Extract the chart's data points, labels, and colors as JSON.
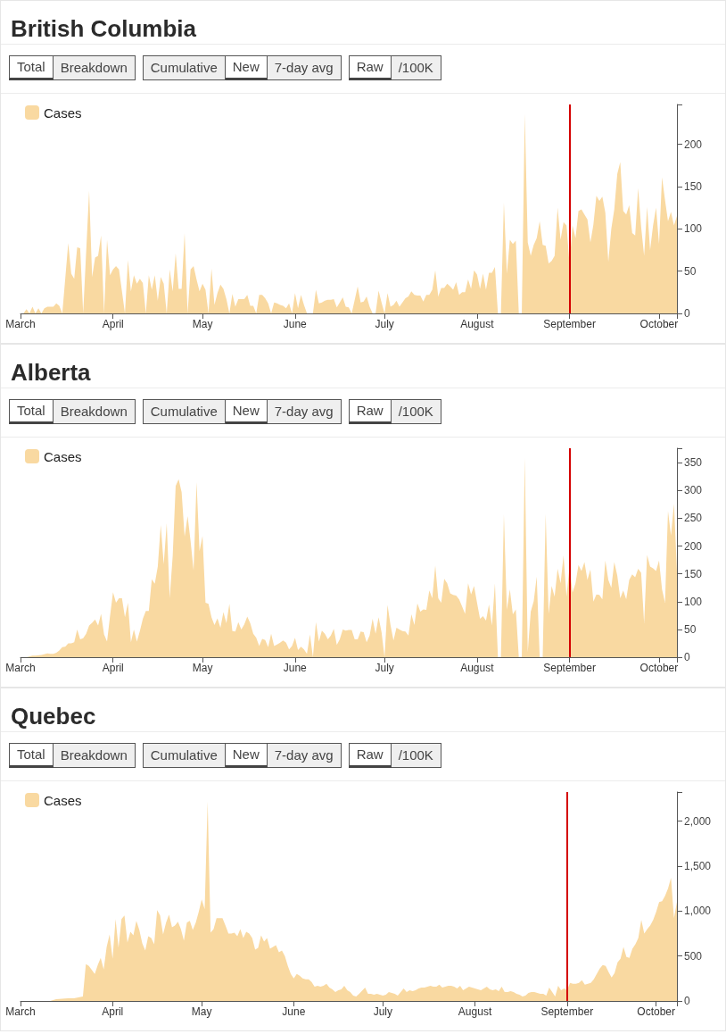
{
  "chart_data": [
    {
      "type": "area",
      "title": "British Columbia",
      "annotations": [
        "Total",
        "Breakdown",
        "Cumulative",
        "New",
        "7-day avg",
        "Raw",
        "/100K"
      ],
      "legend": "top left",
      "marker": "none",
      "x": [
        "--03-01",
        "--03-02",
        "--03-03",
        "--03-04",
        "--03-05",
        "--03-06",
        "--03-07",
        "--03-08",
        "--03-09",
        "--03-10",
        "--03-11",
        "--03-12",
        "--03-13",
        "--03-14",
        "--03-15",
        "--03-17",
        "--03-18",
        "--03-19",
        "--03-20",
        "--03-21",
        "--03-22",
        "--03-24",
        "--03-25",
        "--03-26",
        "--03-27",
        "--03-28",
        "--03-29",
        "--03-30",
        "--03-31",
        "--04-01",
        "--04-02",
        "--04-03",
        "--04-05",
        "--04-06",
        "--04-07",
        "--04-08",
        "--04-09",
        "--04-10",
        "--04-11",
        "--04-12",
        "--04-13",
        "--04-14",
        "--04-15",
        "--04-16",
        "--04-17",
        "--04-18",
        "--04-19",
        "--04-20",
        "--04-21",
        "--04-22",
        "--04-23",
        "--04-24",
        "--04-25",
        "--04-26",
        "--04-27",
        "--04-28",
        "--04-29",
        "--04-30",
        "--05-01",
        "--05-02",
        "--05-03",
        "--05-04",
        "--05-05",
        "--05-06",
        "--05-07",
        "--05-08",
        "--05-09",
        "--05-10",
        "--05-11",
        "--05-12",
        "--05-13",
        "--05-14",
        "--05-15",
        "--05-16",
        "--05-17",
        "--05-18",
        "--05-19",
        "--05-20",
        "--05-21",
        "--05-22",
        "--05-23",
        "--05-24",
        "--05-25",
        "--05-26",
        "--05-27",
        "--05-28",
        "--05-29",
        "--05-30",
        "--05-31",
        "--06-01",
        "--06-02",
        "--06-03",
        "--06-04",
        "--06-05",
        "--06-07",
        "--06-08",
        "--06-09",
        "--06-10",
        "--06-11",
        "--06-12",
        "--06-13",
        "--06-14",
        "--06-15",
        "--06-16",
        "--06-17",
        "--06-18",
        "--06-19",
        "--06-20",
        "--06-22",
        "--06-23",
        "--06-24",
        "--06-25",
        "--06-26",
        "--06-27",
        "--06-28",
        "--06-29",
        "--06-30",
        "--07-01",
        "--07-02",
        "--07-03",
        "--07-04",
        "--07-05",
        "--07-06",
        "--07-07",
        "--07-08",
        "--07-09",
        "--07-10",
        "--07-11",
        "--07-12",
        "--07-13",
        "--07-14",
        "--07-15",
        "--07-16",
        "--07-17",
        "--07-18",
        "--07-19",
        "--07-20",
        "--07-21",
        "--07-22",
        "--07-23",
        "--07-24",
        "--07-25",
        "--07-26",
        "--07-27",
        "--07-28",
        "--07-29",
        "--07-30",
        "--07-31",
        "--08-01",
        "--08-02",
        "--08-03",
        "--08-04",
        "--08-05",
        "--08-06",
        "--08-07",
        "--08-08",
        "--08-09",
        "--08-10",
        "--08-11",
        "--08-12",
        "--08-13",
        "--08-14",
        "--08-15",
        "--08-16",
        "--08-17",
        "--08-18",
        "--08-19",
        "--08-20",
        "--08-21",
        "--08-22",
        "--08-23",
        "--08-24",
        "--08-25",
        "--08-26",
        "--08-27",
        "--08-28",
        "--08-29",
        "--08-30",
        "--08-31",
        "--09-01",
        "--09-02",
        "--09-03",
        "--09-04",
        "--09-05",
        "--09-06",
        "--09-07",
        "--09-08",
        "--09-09",
        "--09-10",
        "--09-11",
        "--09-12",
        "--09-13",
        "--09-14",
        "--09-15",
        "--09-16",
        "--09-17",
        "--09-18",
        "--09-19",
        "--09-20",
        "--09-21",
        "--09-22",
        "--09-23",
        "--09-24",
        "--09-25",
        "--09-26",
        "--09-27",
        "--09-28",
        "--09-29",
        "--09-30",
        "--10-01",
        "--10-02",
        "--10-03",
        "--10-04",
        "--10-05",
        "--10-06",
        "--10-07"
      ],
      "series": [
        {
          "name": "Cases",
          "color": "#f9d9a1",
          "values": [
            0,
            0,
            5,
            0,
            8,
            0,
            6,
            0,
            6,
            8,
            8,
            8,
            12,
            9,
            0,
            83,
            47,
            41,
            78,
            77,
            0,
            145,
            43,
            66,
            68,
            92,
            0,
            87,
            45,
            52,
            56,
            52,
            0,
            63,
            26,
            45,
            35,
            41,
            36,
            0,
            45,
            28,
            45,
            15,
            43,
            35,
            0,
            52,
            26,
            71,
            29,
            29,
            95,
            0,
            52,
            56,
            40,
            26,
            35,
            28,
            0,
            53,
            10,
            24,
            34,
            29,
            17,
            0,
            23,
            8,
            17,
            17,
            17,
            22,
            9,
            9,
            0,
            22,
            22,
            18,
            12,
            0,
            13,
            12,
            10,
            9,
            6,
            12,
            0,
            24,
            6,
            22,
            10,
            0,
            0,
            28,
            12,
            13,
            15,
            16,
            16,
            17,
            7,
            13,
            19,
            8,
            7,
            0,
            32,
            13,
            14,
            20,
            8,
            0,
            0,
            27,
            13,
            0,
            24,
            8,
            10,
            15,
            8,
            13,
            18,
            20,
            26,
            22,
            21,
            21,
            14,
            22,
            22,
            28,
            51,
            20,
            30,
            30,
            35,
            32,
            28,
            37,
            22,
            25,
            25,
            40,
            29,
            51,
            46,
            29,
            47,
            28,
            48,
            48,
            55,
            0,
            0,
            131,
            47,
            87,
            82,
            86,
            0,
            0,
            236,
            84,
            68,
            81,
            89,
            109,
            81,
            80,
            59,
            62,
            68,
            125,
            87,
            108,
            104,
            58,
            104,
            89,
            121,
            123,
            117,
            111,
            84,
            105,
            139,
            133,
            138,
            119,
            61,
            100,
            123,
            165,
            179,
            121,
            117,
            128,
            95,
            92,
            148,
            102,
            68,
            126,
            75,
            104,
            125,
            82,
            161,
            134,
            109,
            120,
            104,
            115
          ]
        }
      ],
      "xlim": [
        "--03-01",
        "--10-07"
      ],
      "xticks": [
        {
          "value": "--03-01",
          "label": "March"
        },
        {
          "value": "--04-01",
          "label": "April"
        },
        {
          "value": "--05-01",
          "label": "May"
        },
        {
          "value": "--06-01",
          "label": "June"
        },
        {
          "value": "--07-01",
          "label": "July"
        },
        {
          "value": "--08-01",
          "label": "August"
        },
        {
          "value": "--09-01",
          "label": "September"
        },
        {
          "value": "--10-01",
          "label": "October"
        },
        {
          "value": "--10-07",
          "label": null
        }
      ],
      "ylim": [
        0,
        247
      ],
      "yticks": [
        0,
        50,
        100,
        150,
        200,
        {
          "value": 247,
          "label": null
        }
      ],
      "ref_lines": [
        {
          "axis": "x",
          "value": "--09-01",
          "color": "#d40000"
        }
      ]
    },
    {
      "type": "area",
      "title": "Alberta",
      "annotations": [
        "Total",
        "Breakdown",
        "Cumulative",
        "New",
        "7-day avg",
        "Raw",
        "/100K"
      ],
      "legend": "top left",
      "marker": "none",
      "x": [
        "--03-01",
        "--03-03",
        "--03-05",
        "--03-06",
        "--03-08",
        "--03-10",
        "--03-11",
        "--03-12",
        "--03-13",
        "--03-14",
        "--03-15",
        "--03-16",
        "--03-17",
        "--03-18",
        "--03-19",
        "--03-20",
        "--03-21",
        "--03-22",
        "--03-23",
        "--03-24",
        "--03-25",
        "--03-26",
        "--03-27",
        "--03-28",
        "--03-29",
        "--03-30",
        "--03-31",
        "--04-01",
        "--04-02",
        "--04-03",
        "--04-04",
        "--04-05",
        "--04-06",
        "--04-07",
        "--04-08",
        "--04-09",
        "--04-10",
        "--04-11",
        "--04-12",
        "--04-13",
        "--04-14",
        "--04-15",
        "--04-16",
        "--04-17",
        "--04-18",
        "--04-19",
        "--04-20",
        "--04-21",
        "--04-22",
        "--04-23",
        "--04-24",
        "--04-25",
        "--04-26",
        "--04-27",
        "--04-28",
        "--04-29",
        "--04-30",
        "--05-01",
        "--05-02",
        "--05-03",
        "--05-04",
        "--05-05",
        "--05-06",
        "--05-07",
        "--05-08",
        "--05-09",
        "--05-10",
        "--05-11",
        "--05-12",
        "--05-13",
        "--05-14",
        "--05-15",
        "--05-16",
        "--05-17",
        "--05-18",
        "--05-19",
        "--05-20",
        "--05-21",
        "--05-22",
        "--05-23",
        "--05-24",
        "--05-25",
        "--05-26",
        "--05-27",
        "--05-28",
        "--05-29",
        "--05-30",
        "--05-31",
        "--06-01",
        "--06-02",
        "--06-03",
        "--06-04",
        "--06-05",
        "--06-06",
        "--06-07",
        "--06-08",
        "--06-09",
        "--06-10",
        "--06-11",
        "--06-12",
        "--06-13",
        "--06-14",
        "--06-15",
        "--06-16",
        "--06-17",
        "--06-18",
        "--06-19",
        "--06-20",
        "--06-21",
        "--06-22",
        "--06-23",
        "--06-24",
        "--06-25",
        "--06-26",
        "--06-27",
        "--06-28",
        "--06-29",
        "--06-30",
        "--07-01",
        "--07-02",
        "--07-03",
        "--07-04",
        "--07-05",
        "--07-06",
        "--07-07",
        "--07-08",
        "--07-09",
        "--07-10",
        "--07-11",
        "--07-12",
        "--07-13",
        "--07-14",
        "--07-15",
        "--07-16",
        "--07-17",
        "--07-18",
        "--07-19",
        "--07-20",
        "--07-21",
        "--07-22",
        "--07-23",
        "--07-24",
        "--07-25",
        "--07-26",
        "--07-27",
        "--07-28",
        "--07-29",
        "--07-30",
        "--07-31",
        "--08-01",
        "--08-02",
        "--08-03",
        "--08-04",
        "--08-05",
        "--08-06",
        "--08-07",
        "--08-08",
        "--08-09",
        "--08-10",
        "--08-11",
        "--08-12",
        "--08-13",
        "--08-14",
        "--08-15",
        "--08-16",
        "--08-17",
        "--08-18",
        "--08-19",
        "--08-20",
        "--08-21",
        "--08-22",
        "--08-23",
        "--08-24",
        "--08-25",
        "--08-26",
        "--08-27",
        "--08-28",
        "--08-29",
        "--08-30",
        "--08-31",
        "--09-01",
        "--09-02",
        "--09-03",
        "--09-04",
        "--09-05",
        "--09-06",
        "--09-07",
        "--09-08",
        "--09-09",
        "--09-10",
        "--09-11",
        "--09-12",
        "--09-13",
        "--09-14",
        "--09-15",
        "--09-16",
        "--09-17",
        "--09-18",
        "--09-19",
        "--09-20",
        "--09-21",
        "--09-22",
        "--09-23",
        "--09-24",
        "--09-25",
        "--09-26",
        "--09-27",
        "--09-28",
        "--09-29",
        "--09-30",
        "--10-01",
        "--10-02",
        "--10-03",
        "--10-04",
        "--10-05",
        "--10-06",
        "--10-07"
      ],
      "series": [
        {
          "name": "Cases",
          "color": "#f9d9a1",
          "values": [
            0,
            0,
            3,
            3,
            4,
            7,
            6,
            6,
            8,
            12,
            18,
            19,
            25,
            25,
            27,
            50,
            32,
            34,
            42,
            57,
            62,
            68,
            57,
            78,
            41,
            28,
            74,
            117,
            98,
            106,
            106,
            72,
            98,
            27,
            50,
            28,
            47,
            69,
            83,
            83,
            140,
            132,
            163,
            238,
            167,
            241,
            106,
            182,
            308,
            320,
            297,
            217,
            254,
            209,
            156,
            315,
            191,
            218,
            98,
            96,
            72,
            58,
            70,
            53,
            81,
            61,
            96,
            47,
            46,
            63,
            50,
            59,
            73,
            61,
            42,
            35,
            20,
            33,
            31,
            18,
            42,
            20,
            23,
            26,
            30,
            26,
            14,
            20,
            35,
            13,
            19,
            14,
            6,
            41,
            0,
            63,
            28,
            48,
            42,
            32,
            39,
            51,
            22,
            32,
            50,
            48,
            49,
            49,
            32,
            32,
            46,
            45,
            27,
            39,
            69,
            42,
            72,
            45,
            0,
            94,
            58,
            30,
            53,
            50,
            47,
            46,
            39,
            77,
            58,
            97,
            82,
            86,
            85,
            120,
            106,
            165,
            106,
            98,
            141,
            133,
            115,
            112,
            111,
            104,
            91,
            78,
            133,
            113,
            128,
            98,
            69,
            74,
            66,
            95,
            57,
            133,
            0,
            0,
            257,
            85,
            122,
            77,
            86,
            0,
            0,
            359,
            9,
            82,
            101,
            145,
            0,
            0,
            258,
            78,
            128,
            109,
            159,
            133,
            183,
            109,
            165,
            116,
            133,
            166,
            155,
            171,
            139,
            158,
            100,
            113,
            112,
            104,
            174,
            139,
            125,
            171,
            147,
            106,
            120,
            104,
            139,
            149,
            144,
            159,
            152,
            61,
            184,
            163,
            160,
            155,
            174,
            122,
            98,
            263,
            219,
            276,
            155
          ]
        }
      ],
      "xlim": [
        "--03-01",
        "--10-07"
      ],
      "xticks": [
        {
          "value": "--03-01",
          "label": "March"
        },
        {
          "value": "--04-01",
          "label": "April"
        },
        {
          "value": "--05-01",
          "label": "May"
        },
        {
          "value": "--06-01",
          "label": "June"
        },
        {
          "value": "--07-01",
          "label": "July"
        },
        {
          "value": "--08-01",
          "label": "August"
        },
        {
          "value": "--09-01",
          "label": "September"
        },
        {
          "value": "--10-01",
          "label": "October"
        },
        {
          "value": "--10-07",
          "label": null
        }
      ],
      "ylim": [
        0,
        376
      ],
      "yticks": [
        0,
        50,
        100,
        150,
        200,
        250,
        300,
        350,
        {
          "value": 376,
          "label": null
        }
      ],
      "ref_lines": [
        {
          "axis": "x",
          "value": "--09-01",
          "color": "#d40000"
        }
      ]
    },
    {
      "type": "area",
      "title": "Quebec",
      "annotations": [
        "Total",
        "Breakdown",
        "Cumulative",
        "New",
        "7-day avg",
        "Raw",
        "/100K"
      ],
      "legend": "top left",
      "marker": "none",
      "x": [
        "--03-01",
        "--03-11",
        "--03-13",
        "--03-17",
        "--03-19",
        "--03-22",
        "--03-23",
        "--03-24",
        "--03-26",
        "--03-27",
        "--03-28",
        "--03-29",
        "--03-30",
        "--03-31",
        "--04-01",
        "--04-02",
        "--04-03",
        "--04-04",
        "--04-05",
        "--04-06",
        "--04-07",
        "--04-08",
        "--04-09",
        "--04-10",
        "--04-11",
        "--04-12",
        "--04-13",
        "--04-14",
        "--04-15",
        "--04-16",
        "--04-17",
        "--04-18",
        "--04-19",
        "--04-20",
        "--04-21",
        "--04-22",
        "--04-23",
        "--04-24",
        "--04-25",
        "--04-26",
        "--04-27",
        "--04-28",
        "--04-29",
        "--04-30",
        "--05-01",
        "--05-02",
        "--05-03",
        "--05-04",
        "--05-05",
        "--05-06",
        "--05-07",
        "--05-08",
        "--05-09",
        "--05-10",
        "--05-11",
        "--05-12",
        "--05-13",
        "--05-14",
        "--05-15",
        "--05-16",
        "--05-17",
        "--05-18",
        "--05-19",
        "--05-20",
        "--05-21",
        "--05-22",
        "--05-23",
        "--05-24",
        "--05-25",
        "--05-26",
        "--05-27",
        "--05-28",
        "--05-29",
        "--05-30",
        "--05-31",
        "--06-01",
        "--06-02",
        "--06-03",
        "--06-04",
        "--06-05",
        "--06-06",
        "--06-07",
        "--06-08",
        "--06-09",
        "--06-10",
        "--06-11",
        "--06-12",
        "--06-13",
        "--06-14",
        "--06-15",
        "--06-16",
        "--06-17",
        "--06-18",
        "--06-19",
        "--06-20",
        "--06-21",
        "--06-22",
        "--06-23",
        "--06-25",
        "--06-26",
        "--06-27",
        "--06-28",
        "--06-29",
        "--06-30",
        "--07-01",
        "--07-02",
        "--07-03",
        "--07-05",
        "--07-06",
        "--07-07",
        "--07-08",
        "--07-09",
        "--07-10",
        "--07-11",
        "--07-12",
        "--07-13",
        "--07-14",
        "--07-15",
        "--07-16",
        "--07-17",
        "--07-18",
        "--07-19",
        "--07-20",
        "--07-21",
        "--07-22",
        "--07-23",
        "--07-24",
        "--07-25",
        "--07-26",
        "--07-27",
        "--07-28",
        "--07-29",
        "--07-30",
        "--07-31",
        "--08-01",
        "--08-02",
        "--08-03",
        "--08-04",
        "--08-05",
        "--08-06",
        "--08-07",
        "--08-08",
        "--08-09",
        "--08-10",
        "--08-11",
        "--08-12",
        "--08-13",
        "--08-14",
        "--08-15",
        "--08-16",
        "--08-17",
        "--08-18",
        "--08-19",
        "--08-20",
        "--08-21",
        "--08-22",
        "--08-23",
        "--08-24",
        "--08-25",
        "--08-26",
        "--08-27",
        "--08-28",
        "--08-29",
        "--08-30",
        "--08-31",
        "--09-01",
        "--09-02",
        "--09-03",
        "--09-04",
        "--09-05",
        "--09-06",
        "--09-07",
        "--09-08",
        "--09-09",
        "--09-10",
        "--09-11",
        "--09-12",
        "--09-13",
        "--09-14",
        "--09-15",
        "--09-16",
        "--09-17",
        "--09-18",
        "--09-19",
        "--09-20",
        "--09-21",
        "--09-22",
        "--09-23",
        "--09-24",
        "--09-25",
        "--09-26",
        "--09-27",
        "--09-28",
        "--09-29",
        "--09-30",
        "--10-01",
        "--10-02",
        "--10-03",
        "--10-04",
        "--10-05",
        "--10-06",
        "--10-07",
        "--10-08"
      ],
      "series": [
        {
          "name": "Cases",
          "color": "#f9d9a1",
          "values": [
            0,
            0,
            20,
            30,
            30,
            50,
            410,
            390,
            300,
            400,
            480,
            350,
            600,
            740,
            470,
            910,
            590,
            910,
            950,
            650,
            770,
            730,
            890,
            790,
            640,
            560,
            720,
            700,
            630,
            1010,
            950,
            740,
            870,
            960,
            820,
            840,
            880,
            800,
            670,
            870,
            890,
            790,
            870,
            990,
            1130,
            1020,
            2220,
            760,
            800,
            920,
            920,
            920,
            840,
            750,
            750,
            760,
            720,
            800,
            700,
            770,
            750,
            700,
            570,
            590,
            730,
            660,
            700,
            580,
            600,
            620,
            540,
            560,
            500,
            390,
            300,
            250,
            300,
            280,
            250,
            240,
            240,
            210,
            160,
            170,
            160,
            170,
            190,
            150,
            130,
            100,
            120,
            130,
            170,
            120,
            100,
            60,
            50,
            80,
            150,
            80,
            80,
            70,
            80,
            70,
            60,
            70,
            100,
            80,
            60,
            100,
            140,
            100,
            120,
            110,
            120,
            140,
            150,
            150,
            160,
            170,
            160,
            160,
            180,
            150,
            160,
            170,
            170,
            160,
            140,
            170,
            120,
            140,
            160,
            150,
            140,
            130,
            120,
            140,
            160,
            130,
            120,
            130,
            110,
            160,
            100,
            100,
            110,
            100,
            80,
            70,
            50,
            60,
            90,
            100,
            100,
            90,
            80,
            80,
            60,
            150,
            100,
            50,
            170,
            120,
            140,
            120,
            200,
            190,
            190,
            200,
            230,
            180,
            190,
            200,
            240,
            300,
            360,
            400,
            390,
            320,
            260,
            310,
            430,
            470,
            600,
            490,
            480,
            580,
            630,
            700,
            900,
            750,
            800,
            840,
            900,
            990,
            1100,
            1110,
            1170,
            1250,
            1370,
            920,
            1100
          ]
        }
      ],
      "xlim": [
        "--03-01",
        "--10-08"
      ],
      "xticks": [
        {
          "value": "--03-01",
          "label": "March"
        },
        {
          "value": "--04-01",
          "label": "April"
        },
        {
          "value": "--05-01",
          "label": "May"
        },
        {
          "value": "--06-01",
          "label": "June"
        },
        {
          "value": "--07-01",
          "label": "July"
        },
        {
          "value": "--08-01",
          "label": "August"
        },
        {
          "value": "--09-01",
          "label": "September"
        },
        {
          "value": "--10-01",
          "label": "October"
        },
        {
          "value": "--10-08",
          "label": null
        }
      ],
      "ylim": [
        0,
        2323
      ],
      "yticks": [
        0,
        500,
        {
          "value": 1000,
          "label": "1,000"
        },
        {
          "value": 1500,
          "label": "1,500"
        },
        {
          "value": 2000,
          "label": "2,000"
        },
        {
          "value": 2323,
          "label": null
        }
      ],
      "ref_lines": [
        {
          "axis": "x",
          "value": "--09-01",
          "color": "#d40000"
        }
      ]
    }
  ]
}
